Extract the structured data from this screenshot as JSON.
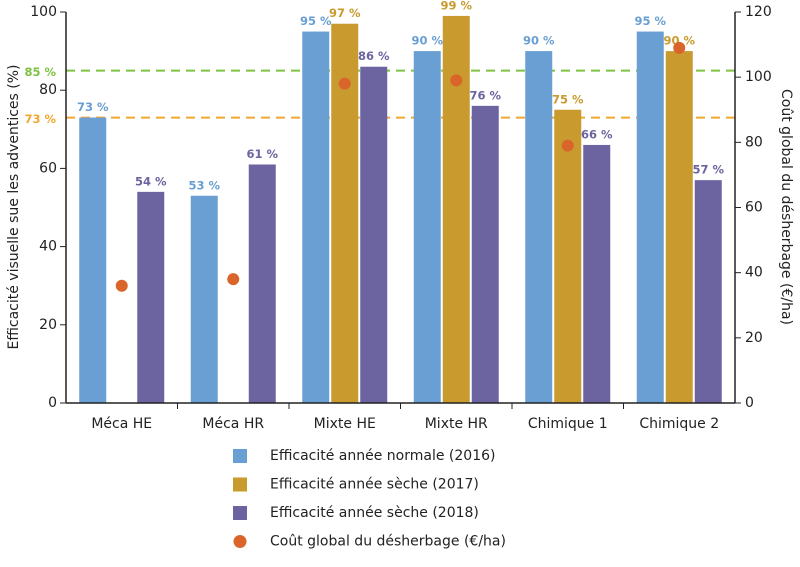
{
  "chart_data": {
    "type": "bar",
    "ylabel": "Efficacité visuelle sue les adventices (%)",
    "y2label": "Coût global du désherbage (€/ha)",
    "categories": [
      "Méca HE",
      "Méca HR",
      "Mixte HE",
      "Mixte HR",
      "Chimique 1",
      "Chimique 2"
    ],
    "series": [
      {
        "name": "Efficacité année normale (2016)",
        "color": "#6a9fd4",
        "values": [
          73,
          53,
          95,
          90,
          90,
          95
        ],
        "value_labels": [
          "73 %",
          "53 %",
          "95 %",
          "90 %",
          "90 %",
          "95 %"
        ]
      },
      {
        "name": "Efficacité année sèche (2017)",
        "color": "#c99a2e",
        "values": [
          null,
          null,
          97,
          99,
          75,
          90
        ],
        "value_labels": [
          null,
          null,
          "97 %",
          "99 %",
          "75 %",
          "90 %"
        ]
      },
      {
        "name": "Efficacité année sèche (2018)",
        "color": "#6b64a0",
        "values": [
          54,
          61,
          86,
          76,
          66,
          57
        ],
        "value_labels": [
          "54 %",
          "61 %",
          "86 %",
          "76 %",
          "66 %",
          "57 %"
        ]
      },
      {
        "name": "Coût global du désherbage (€/ha)",
        "color": "#d9652b",
        "type": "scatter",
        "axis": "y2",
        "values": [
          36,
          38,
          98,
          99,
          79,
          109
        ]
      }
    ],
    "reference_lines": [
      {
        "value": 85,
        "label": "85 %",
        "color": "#7dc242"
      },
      {
        "value": 73,
        "label": "73 %",
        "color": "#f0a830"
      }
    ],
    "ylim": [
      0,
      100
    ],
    "yticks": [
      0,
      20,
      40,
      60,
      80,
      100
    ],
    "y2lim": [
      0,
      120
    ],
    "y2ticks": [
      0,
      20,
      40,
      60,
      80,
      100,
      120
    ]
  }
}
